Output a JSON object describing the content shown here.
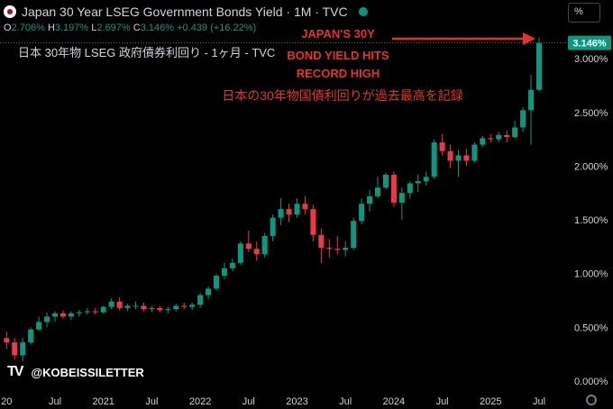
{
  "header": {
    "title": "Japan 30 Year LSEG Government Bonds Yield · 1M · TVC",
    "ohlc": [
      {
        "k": "O",
        "v": "2.706%"
      },
      {
        "k": "H",
        "v": "3.197%"
      },
      {
        "k": "L",
        "v": "2.697%"
      },
      {
        "k": "C",
        "v": "3.146%"
      },
      {
        "k": "",
        "v": "+0.439 (+16.22%)"
      }
    ],
    "subtitle": "日本 30年物 LSEG 政府債券利回り - 1ヶ月 - TVC",
    "scale_button": "%"
  },
  "annotations": {
    "line1": "JAPAN'S 30Y",
    "line2": "BOND YIELD HITS",
    "line3": "RECORD HIGH",
    "line4": "日本の30年物国債利回りが過去最高を記録"
  },
  "watermark": {
    "handle": "@KOBEISSILETTER",
    "logo": "TV"
  },
  "colors": {
    "up": "#089981",
    "down": "#f23645",
    "accent": "#e8312f",
    "background": "#000000"
  },
  "chart_data": {
    "type": "candlestick",
    "interval": "1M",
    "y_unit": "%",
    "ylim": [
      0,
      3.35
    ],
    "y_ticks": [
      "0.000%",
      "0.500%",
      "1.000%",
      "1.500%",
      "2.000%",
      "2.500%",
      "3.000%"
    ],
    "x_ticks": [
      {
        "label": "20",
        "t": 2020.0
      },
      {
        "label": "Jul",
        "t": 2020.5
      },
      {
        "label": "2021",
        "t": 2021.0
      },
      {
        "label": "Jul",
        "t": 2021.5
      },
      {
        "label": "2022",
        "t": 2022.0
      },
      {
        "label": "Jul",
        "t": 2022.5
      },
      {
        "label": "2023",
        "t": 2023.0
      },
      {
        "label": "Jul",
        "t": 2023.5
      },
      {
        "label": "2024",
        "t": 2024.0
      },
      {
        "label": "Jul",
        "t": 2024.5
      },
      {
        "label": "2025",
        "t": 2025.0
      },
      {
        "label": "Jul",
        "t": 2025.5
      }
    ],
    "last_price_label": "3.146%",
    "candles": [
      {
        "o": 0.4,
        "h": 0.46,
        "l": 0.3,
        "c": 0.36
      },
      {
        "o": 0.36,
        "h": 0.4,
        "l": 0.2,
        "c": 0.24
      },
      {
        "o": 0.24,
        "h": 0.4,
        "l": 0.18,
        "c": 0.36
      },
      {
        "o": 0.36,
        "h": 0.5,
        "l": 0.34,
        "c": 0.48
      },
      {
        "o": 0.48,
        "h": 0.6,
        "l": 0.47,
        "c": 0.55
      },
      {
        "o": 0.55,
        "h": 0.64,
        "l": 0.5,
        "c": 0.6
      },
      {
        "o": 0.6,
        "h": 0.65,
        "l": 0.55,
        "c": 0.63
      },
      {
        "o": 0.63,
        "h": 0.66,
        "l": 0.58,
        "c": 0.6
      },
      {
        "o": 0.6,
        "h": 0.65,
        "l": 0.57,
        "c": 0.63
      },
      {
        "o": 0.63,
        "h": 0.66,
        "l": 0.6,
        "c": 0.64
      },
      {
        "o": 0.64,
        "h": 0.68,
        "l": 0.62,
        "c": 0.65
      },
      {
        "o": 0.65,
        "h": 0.68,
        "l": 0.62,
        "c": 0.64
      },
      {
        "o": 0.64,
        "h": 0.7,
        "l": 0.63,
        "c": 0.69
      },
      {
        "o": 0.69,
        "h": 0.77,
        "l": 0.67,
        "c": 0.74
      },
      {
        "o": 0.74,
        "h": 0.78,
        "l": 0.66,
        "c": 0.68
      },
      {
        "o": 0.68,
        "h": 0.72,
        "l": 0.65,
        "c": 0.7
      },
      {
        "o": 0.7,
        "h": 0.74,
        "l": 0.67,
        "c": 0.7
      },
      {
        "o": 0.7,
        "h": 0.73,
        "l": 0.65,
        "c": 0.67
      },
      {
        "o": 0.67,
        "h": 0.7,
        "l": 0.64,
        "c": 0.68
      },
      {
        "o": 0.68,
        "h": 0.7,
        "l": 0.64,
        "c": 0.66
      },
      {
        "o": 0.66,
        "h": 0.69,
        "l": 0.63,
        "c": 0.67
      },
      {
        "o": 0.67,
        "h": 0.72,
        "l": 0.65,
        "c": 0.7
      },
      {
        "o": 0.7,
        "h": 0.73,
        "l": 0.67,
        "c": 0.69
      },
      {
        "o": 0.69,
        "h": 0.73,
        "l": 0.66,
        "c": 0.71
      },
      {
        "o": 0.71,
        "h": 0.82,
        "l": 0.68,
        "c": 0.8
      },
      {
        "o": 0.8,
        "h": 0.88,
        "l": 0.76,
        "c": 0.86
      },
      {
        "o": 0.86,
        "h": 1.0,
        "l": 0.84,
        "c": 0.98
      },
      {
        "o": 0.98,
        "h": 1.1,
        "l": 0.95,
        "c": 1.05
      },
      {
        "o": 1.05,
        "h": 1.14,
        "l": 1.02,
        "c": 1.1
      },
      {
        "o": 1.1,
        "h": 1.3,
        "l": 1.08,
        "c": 1.28
      },
      {
        "o": 1.28,
        "h": 1.4,
        "l": 1.2,
        "c": 1.23
      },
      {
        "o": 1.23,
        "h": 1.3,
        "l": 1.12,
        "c": 1.18
      },
      {
        "o": 1.18,
        "h": 1.38,
        "l": 1.15,
        "c": 1.35
      },
      {
        "o": 1.35,
        "h": 1.55,
        "l": 1.3,
        "c": 1.52
      },
      {
        "o": 1.52,
        "h": 1.7,
        "l": 1.45,
        "c": 1.6
      },
      {
        "o": 1.6,
        "h": 1.65,
        "l": 1.48,
        "c": 1.55
      },
      {
        "o": 1.55,
        "h": 1.7,
        "l": 1.52,
        "c": 1.65
      },
      {
        "o": 1.65,
        "h": 1.72,
        "l": 1.55,
        "c": 1.6
      },
      {
        "o": 1.6,
        "h": 1.64,
        "l": 1.3,
        "c": 1.36
      },
      {
        "o": 1.36,
        "h": 1.42,
        "l": 1.1,
        "c": 1.24
      },
      {
        "o": 1.24,
        "h": 1.32,
        "l": 1.15,
        "c": 1.23
      },
      {
        "o": 1.23,
        "h": 1.35,
        "l": 1.18,
        "c": 1.22
      },
      {
        "o": 1.22,
        "h": 1.3,
        "l": 1.16,
        "c": 1.24
      },
      {
        "o": 1.24,
        "h": 1.52,
        "l": 1.22,
        "c": 1.49
      },
      {
        "o": 1.49,
        "h": 1.7,
        "l": 1.46,
        "c": 1.65
      },
      {
        "o": 1.65,
        "h": 1.78,
        "l": 1.58,
        "c": 1.72
      },
      {
        "o": 1.72,
        "h": 1.9,
        "l": 1.7,
        "c": 1.8
      },
      {
        "o": 1.8,
        "h": 1.94,
        "l": 1.78,
        "c": 1.92
      },
      {
        "o": 1.92,
        "h": 1.95,
        "l": 1.62,
        "c": 1.66
      },
      {
        "o": 1.66,
        "h": 1.8,
        "l": 1.5,
        "c": 1.75
      },
      {
        "o": 1.75,
        "h": 1.86,
        "l": 1.7,
        "c": 1.84
      },
      {
        "o": 1.84,
        "h": 1.92,
        "l": 1.76,
        "c": 1.86
      },
      {
        "o": 1.86,
        "h": 1.95,
        "l": 1.82,
        "c": 1.9
      },
      {
        "o": 1.9,
        "h": 2.25,
        "l": 1.88,
        "c": 2.22
      },
      {
        "o": 2.22,
        "h": 2.3,
        "l": 2.1,
        "c": 2.14
      },
      {
        "o": 2.14,
        "h": 2.2,
        "l": 1.98,
        "c": 2.05
      },
      {
        "o": 2.05,
        "h": 2.15,
        "l": 1.9,
        "c": 2.1
      },
      {
        "o": 2.1,
        "h": 2.16,
        "l": 2.0,
        "c": 2.05
      },
      {
        "o": 2.05,
        "h": 2.22,
        "l": 2.03,
        "c": 2.2
      },
      {
        "o": 2.2,
        "h": 2.28,
        "l": 2.18,
        "c": 2.26
      },
      {
        "o": 2.26,
        "h": 2.3,
        "l": 2.22,
        "c": 2.25
      },
      {
        "o": 2.25,
        "h": 2.32,
        "l": 2.22,
        "c": 2.29
      },
      {
        "o": 2.29,
        "h": 2.33,
        "l": 2.22,
        "c": 2.27
      },
      {
        "o": 2.27,
        "h": 2.42,
        "l": 2.26,
        "c": 2.36
      },
      {
        "o": 2.36,
        "h": 2.55,
        "l": 2.32,
        "c": 2.52
      },
      {
        "o": 2.52,
        "h": 2.85,
        "l": 2.2,
        "c": 2.71
      },
      {
        "o": 2.71,
        "h": 3.197,
        "l": 2.697,
        "c": 3.146
      }
    ]
  }
}
